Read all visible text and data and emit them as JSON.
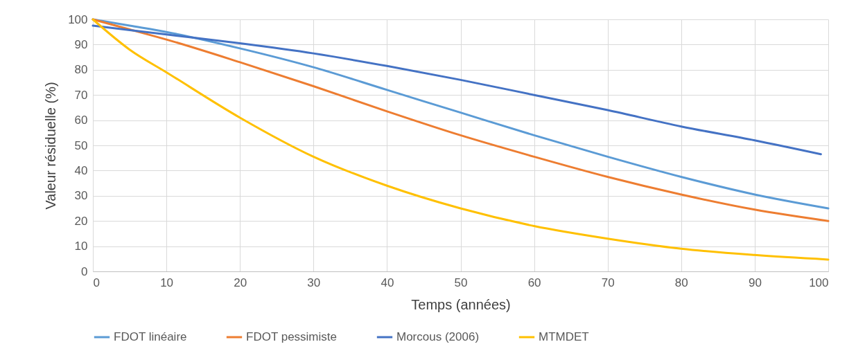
{
  "chart_data": {
    "type": "line",
    "xlabel": "Temps (années)",
    "ylabel": "Valeur résiduelle (%)",
    "xlim": [
      0,
      100
    ],
    "xticks": [
      0,
      10,
      20,
      30,
      40,
      50,
      60,
      70,
      80,
      90,
      100
    ],
    "ylim": [
      0,
      100
    ],
    "yticks": [
      0,
      10,
      20,
      30,
      40,
      50,
      60,
      70,
      80,
      90,
      100
    ],
    "grid": true,
    "legend": "bottom",
    "marker": "none",
    "line_style": "solid",
    "series": [
      {
        "name": "FDOT linéaire",
        "color": "#5b9bd5",
        "x": [
          0,
          5,
          10,
          20,
          30,
          40,
          50,
          60,
          70,
          80,
          90,
          100
        ],
        "values": [
          100,
          97.5,
          95,
          88.5,
          81,
          72,
          63,
          54,
          45.5,
          37.5,
          30.5,
          25
        ]
      },
      {
        "name": "FDOT pessimiste",
        "color": "#ed7d31",
        "x": [
          0,
          5,
          10,
          20,
          30,
          40,
          50,
          60,
          70,
          80,
          90,
          100
        ],
        "values": [
          100,
          96,
          92,
          83,
          73.5,
          63.5,
          54,
          45.5,
          37.5,
          30.5,
          24.5,
          20
        ]
      },
      {
        "name": "Morcous (2006)",
        "color": "#4472c4",
        "x": [
          0,
          10,
          20,
          30,
          40,
          50,
          60,
          70,
          80,
          90,
          99
        ],
        "values": [
          97.5,
          94,
          90.5,
          86.5,
          81.5,
          76,
          70,
          64,
          57.5,
          52,
          46.5
        ]
      },
      {
        "name": "MTMDET",
        "color": "#ffc000",
        "x": [
          0,
          5,
          10,
          20,
          30,
          40,
          50,
          60,
          70,
          80,
          90,
          100
        ],
        "values": [
          100,
          88,
          79,
          61,
          45.5,
          34,
          25,
          18,
          13,
          9,
          6.5,
          4.7
        ]
      }
    ]
  }
}
